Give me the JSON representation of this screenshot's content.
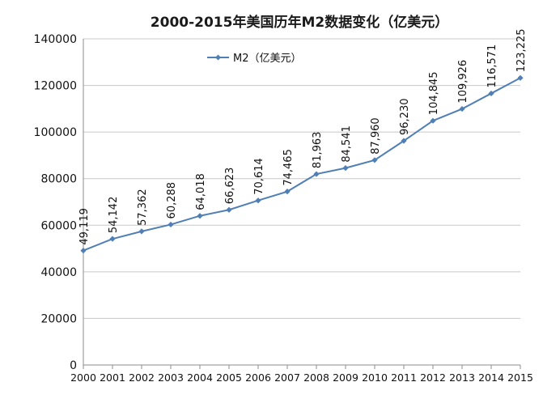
{
  "chart_data": {
    "type": "line",
    "title": "2000-2015年美国历年M2数据变化（亿美元）",
    "categories": [
      "2000",
      "2001",
      "2002",
      "2003",
      "2004",
      "2005",
      "2006",
      "2007",
      "2008",
      "2009",
      "2010",
      "2011",
      "2012",
      "2013",
      "2014",
      "2015"
    ],
    "series": [
      {
        "name": "M2（亿美元）",
        "values": [
          49119,
          54142,
          57362,
          60288,
          64018,
          66623,
          70614,
          74465,
          81963,
          84541,
          87960,
          96230,
          104845,
          109926,
          116571,
          123225
        ],
        "data_labels": [
          "49,119",
          "54,142",
          "57,362",
          "60,288",
          "64,018",
          "66,623",
          "70,614",
          "74,465",
          "81,963",
          "84,541",
          "87,960",
          "96,230",
          "104,845",
          "109,926",
          "116,571",
          "123,225"
        ]
      }
    ],
    "ylim": [
      0,
      140000
    ],
    "yticks": [
      "0",
      "20000",
      "40000",
      "60000",
      "80000",
      "100000",
      "120000",
      "140000"
    ],
    "xlabel": "",
    "ylabel": "",
    "grid": "horizontal",
    "legend_position": "top-left",
    "colors": {
      "series": "#4f7fb4",
      "grid": "#c8c8c8",
      "axis": "#8c8c8c"
    }
  }
}
